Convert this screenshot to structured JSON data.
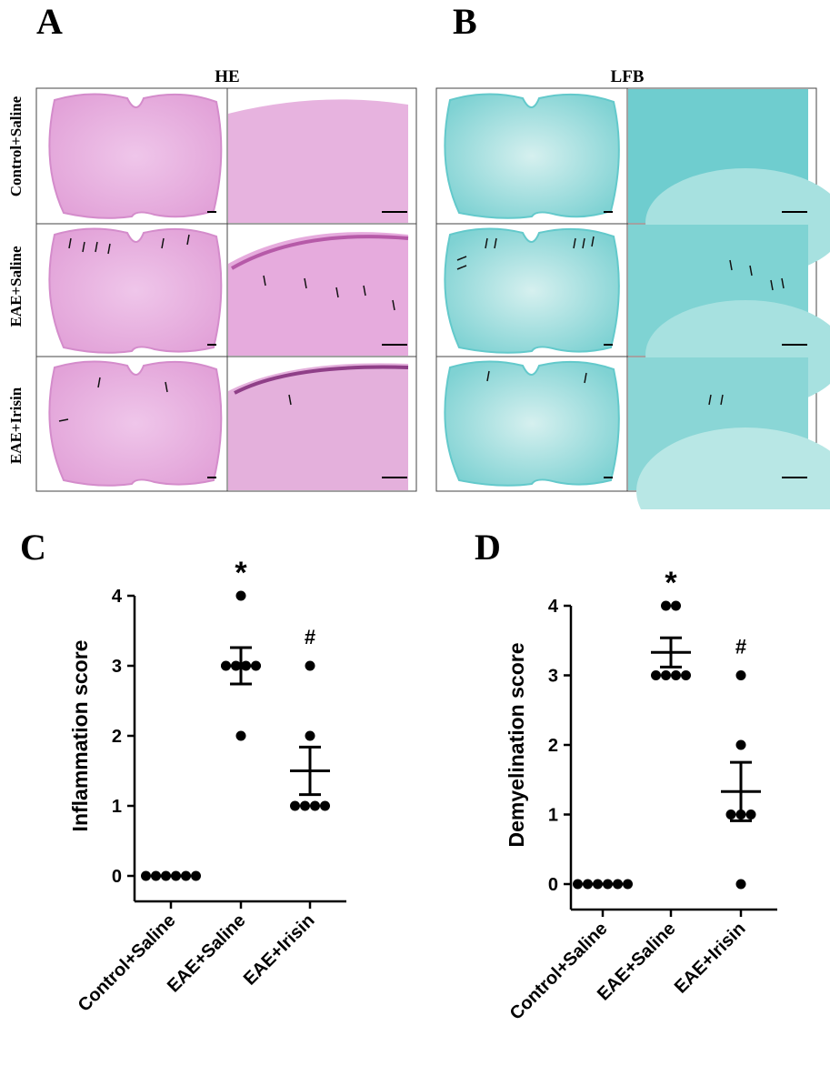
{
  "panels": {
    "a": "A",
    "b": "B",
    "c": "C",
    "d": "D"
  },
  "histology": {
    "he_title": "HE",
    "lfb_title": "LFB",
    "rows": [
      "Control+Saline",
      "EAE+Saline",
      "EAE+Irisin"
    ],
    "colors": {
      "he": "#e6a9dc",
      "he_dark": "#c77ac0",
      "lfb": "#8fd6d6",
      "lfb_dark": "#5cc6c8"
    }
  },
  "chart_data": [
    {
      "type": "scatter",
      "title": "",
      "ylabel": "Inflammation score",
      "xlabel": "",
      "categories": [
        "Control+Saline",
        "EAE+Saline",
        "EAE+Irisin"
      ],
      "ylim": [
        0,
        4
      ],
      "yticks": [
        "0",
        "1",
        "2",
        "3",
        "4"
      ],
      "points": [
        [
          0,
          0,
          0,
          0,
          0,
          0
        ],
        [
          4,
          3,
          3,
          3,
          3,
          2
        ],
        [
          3,
          2,
          1,
          1,
          1,
          1
        ]
      ],
      "mean": [
        0,
        3.0,
        1.5
      ],
      "sem": [
        0,
        0.26,
        0.34
      ],
      "annotations": [
        "",
        "*",
        "#"
      ]
    },
    {
      "type": "scatter",
      "title": "",
      "ylabel": "Demyelination score",
      "xlabel": "",
      "categories": [
        "Control+Saline",
        "EAE+Saline",
        "EAE+Irisin"
      ],
      "ylim": [
        0,
        4
      ],
      "yticks": [
        "0",
        "1",
        "2",
        "3",
        "4"
      ],
      "points": [
        [
          0,
          0,
          0,
          0,
          0,
          0
        ],
        [
          4,
          4,
          3,
          3,
          3,
          3
        ],
        [
          3,
          2,
          1,
          1,
          1,
          0
        ]
      ],
      "mean": [
        0,
        3.33,
        1.33
      ],
      "sem": [
        0,
        0.21,
        0.42
      ],
      "annotations": [
        "",
        "*",
        "#"
      ]
    }
  ]
}
